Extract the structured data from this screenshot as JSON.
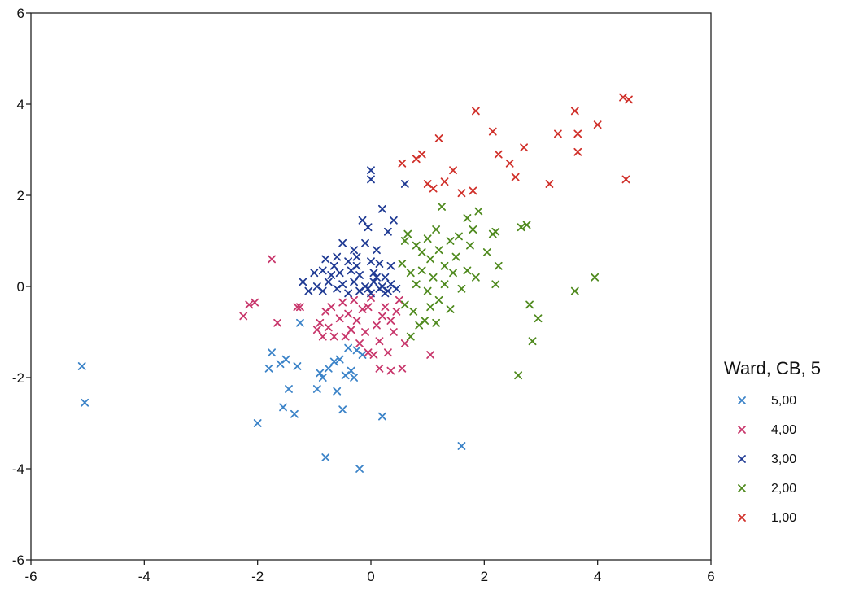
{
  "chart_data": {
    "type": "scatter",
    "title": "",
    "xlabel": "",
    "ylabel": "",
    "xlim": [
      -6,
      6
    ],
    "ylim": [
      -6,
      6
    ],
    "xticks": [
      -6,
      -4,
      -2,
      0,
      2,
      4,
      6
    ],
    "yticks": [
      -6,
      -4,
      -2,
      0,
      2,
      4,
      6
    ],
    "xtick_labels": [
      "-6",
      "-4",
      "-2",
      "0",
      "2",
      "4",
      "6"
    ],
    "ytick_labels": [
      "-6",
      "-4",
      "-2",
      "0",
      "2",
      "4",
      "6"
    ],
    "grid": false,
    "marker": "x",
    "legend": {
      "title": "Ward, CB, 5",
      "position": "right"
    },
    "series": [
      {
        "name": "5,00",
        "color": "#3b83c8",
        "points": [
          [
            -5.1,
            -1.75
          ],
          [
            -5.05,
            -2.55
          ],
          [
            -2.0,
            -3.0
          ],
          [
            -1.8,
            -1.8
          ],
          [
            -1.75,
            -1.45
          ],
          [
            -1.6,
            -1.7
          ],
          [
            -1.55,
            -2.65
          ],
          [
            -1.5,
            -1.6
          ],
          [
            -1.45,
            -2.25
          ],
          [
            -1.35,
            -2.8
          ],
          [
            -1.3,
            -1.75
          ],
          [
            -1.25,
            -0.8
          ],
          [
            -0.95,
            -2.25
          ],
          [
            -0.9,
            -1.9
          ],
          [
            -0.85,
            -2.0
          ],
          [
            -0.8,
            -3.75
          ],
          [
            -0.75,
            -1.8
          ],
          [
            -0.65,
            -1.65
          ],
          [
            -0.6,
            -2.3
          ],
          [
            -0.55,
            -1.6
          ],
          [
            -0.5,
            -2.7
          ],
          [
            -0.45,
            -1.95
          ],
          [
            -0.4,
            -1.35
          ],
          [
            -0.35,
            -1.85
          ],
          [
            -0.3,
            -2.0
          ],
          [
            -0.25,
            -1.4
          ],
          [
            -0.15,
            -1.5
          ],
          [
            0.2,
            -2.85
          ],
          [
            1.6,
            -3.5
          ],
          [
            -0.2,
            -4.0
          ]
        ]
      },
      {
        "name": "4,00",
        "color": "#c8366b",
        "points": [
          [
            -2.25,
            -0.65
          ],
          [
            -2.15,
            -0.4
          ],
          [
            -2.05,
            -0.35
          ],
          [
            -1.75,
            0.6
          ],
          [
            -1.65,
            -0.8
          ],
          [
            -1.3,
            -0.45
          ],
          [
            -1.25,
            -0.45
          ],
          [
            -0.95,
            -0.95
          ],
          [
            -0.9,
            -0.8
          ],
          [
            -0.85,
            -1.1
          ],
          [
            -0.8,
            -0.55
          ],
          [
            -0.75,
            -0.9
          ],
          [
            -0.7,
            -0.45
          ],
          [
            -0.65,
            -1.1
          ],
          [
            -0.55,
            -0.7
          ],
          [
            -0.5,
            -0.35
          ],
          [
            -0.45,
            -1.1
          ],
          [
            -0.4,
            -0.6
          ],
          [
            -0.35,
            -0.95
          ],
          [
            -0.3,
            -0.3
          ],
          [
            -0.25,
            -0.75
          ],
          [
            -0.2,
            -1.25
          ],
          [
            -0.15,
            -0.5
          ],
          [
            -0.1,
            -1.0
          ],
          [
            -0.05,
            -0.45
          ],
          [
            0.0,
            -0.25
          ],
          [
            0.05,
            -1.5
          ],
          [
            0.1,
            -0.85
          ],
          [
            0.15,
            -1.2
          ],
          [
            0.2,
            -0.65
          ],
          [
            0.25,
            -0.45
          ],
          [
            0.3,
            -1.45
          ],
          [
            0.35,
            -0.75
          ],
          [
            0.4,
            -1.0
          ],
          [
            0.45,
            -0.55
          ],
          [
            0.5,
            -0.3
          ],
          [
            -0.05,
            -1.45
          ],
          [
            0.15,
            -1.8
          ],
          [
            0.35,
            -1.85
          ],
          [
            0.55,
            -1.8
          ],
          [
            0.6,
            -1.25
          ],
          [
            1.05,
            -1.5
          ]
        ]
      },
      {
        "name": "3,00",
        "color": "#1f3a93",
        "points": [
          [
            0.0,
            2.55
          ],
          [
            0.0,
            2.35
          ],
          [
            0.6,
            2.25
          ],
          [
            0.2,
            1.7
          ],
          [
            0.4,
            1.45
          ],
          [
            -0.15,
            1.45
          ],
          [
            -0.05,
            1.3
          ],
          [
            0.3,
            1.2
          ],
          [
            -0.5,
            0.95
          ],
          [
            -0.3,
            0.8
          ],
          [
            -0.1,
            0.95
          ],
          [
            0.1,
            0.8
          ],
          [
            -0.8,
            0.6
          ],
          [
            -0.6,
            0.65
          ],
          [
            -0.4,
            0.55
          ],
          [
            -0.25,
            0.65
          ],
          [
            0.0,
            0.55
          ],
          [
            0.15,
            0.5
          ],
          [
            0.35,
            0.45
          ],
          [
            -1.0,
            0.3
          ],
          [
            -0.85,
            0.35
          ],
          [
            -0.7,
            0.25
          ],
          [
            -0.55,
            0.3
          ],
          [
            -0.35,
            0.35
          ],
          [
            -0.2,
            0.25
          ],
          [
            0.05,
            0.3
          ],
          [
            0.25,
            0.2
          ],
          [
            -1.2,
            0.1
          ],
          [
            -0.95,
            0.0
          ],
          [
            -0.75,
            0.1
          ],
          [
            -0.5,
            0.05
          ],
          [
            -0.3,
            0.1
          ],
          [
            -0.1,
            0.0
          ],
          [
            0.05,
            0.1
          ],
          [
            0.2,
            0.0
          ],
          [
            0.35,
            0.05
          ],
          [
            -1.1,
            -0.1
          ],
          [
            -0.85,
            -0.1
          ],
          [
            -0.6,
            -0.05
          ],
          [
            -0.4,
            -0.15
          ],
          [
            -0.2,
            -0.1
          ],
          [
            0.0,
            -0.15
          ],
          [
            0.15,
            -0.05
          ],
          [
            0.3,
            -0.1
          ],
          [
            0.45,
            -0.05
          ],
          [
            -0.25,
            0.45
          ],
          [
            0.1,
            0.2
          ],
          [
            -0.05,
            -0.05
          ],
          [
            0.25,
            -0.15
          ],
          [
            -0.65,
            0.45
          ]
        ]
      },
      {
        "name": "2,00",
        "color": "#4f8a1e",
        "points": [
          [
            0.6,
            1.0
          ],
          [
            0.65,
            1.15
          ],
          [
            0.8,
            0.9
          ],
          [
            0.9,
            0.75
          ],
          [
            1.0,
            1.05
          ],
          [
            1.05,
            0.6
          ],
          [
            1.15,
            1.25
          ],
          [
            1.2,
            0.8
          ],
          [
            1.25,
            1.75
          ],
          [
            1.3,
            0.45
          ],
          [
            1.4,
            1.0
          ],
          [
            1.5,
            0.65
          ],
          [
            1.55,
            1.1
          ],
          [
            1.7,
            1.5
          ],
          [
            1.75,
            0.9
          ],
          [
            1.8,
            1.25
          ],
          [
            1.9,
            1.65
          ],
          [
            2.05,
            0.75
          ],
          [
            2.15,
            1.15
          ],
          [
            2.2,
            1.2
          ],
          [
            2.25,
            0.45
          ],
          [
            2.65,
            1.3
          ],
          [
            2.75,
            1.35
          ],
          [
            0.55,
            0.5
          ],
          [
            0.7,
            0.3
          ],
          [
            0.8,
            0.05
          ],
          [
            0.9,
            0.35
          ],
          [
            1.0,
            -0.1
          ],
          [
            1.1,
            0.2
          ],
          [
            1.2,
            -0.3
          ],
          [
            1.3,
            0.05
          ],
          [
            1.45,
            0.3
          ],
          [
            1.6,
            -0.05
          ],
          [
            1.7,
            0.35
          ],
          [
            1.85,
            0.2
          ],
          [
            0.6,
            -0.4
          ],
          [
            0.75,
            -0.55
          ],
          [
            0.85,
            -0.85
          ],
          [
            0.95,
            -0.75
          ],
          [
            1.05,
            -0.45
          ],
          [
            1.15,
            -0.8
          ],
          [
            1.4,
            -0.5
          ],
          [
            0.7,
            -1.1
          ],
          [
            2.2,
            0.05
          ],
          [
            2.8,
            -0.4
          ],
          [
            2.95,
            -0.7
          ],
          [
            2.85,
            -1.2
          ],
          [
            2.6,
            -1.95
          ],
          [
            3.6,
            -0.1
          ],
          [
            3.95,
            0.2
          ]
        ]
      },
      {
        "name": "1,00",
        "color": "#d0302a",
        "points": [
          [
            0.55,
            2.7
          ],
          [
            0.8,
            2.8
          ],
          [
            0.9,
            2.9
          ],
          [
            1.0,
            2.25
          ],
          [
            1.1,
            2.15
          ],
          [
            1.2,
            3.25
          ],
          [
            1.3,
            2.3
          ],
          [
            1.45,
            2.55
          ],
          [
            1.6,
            2.05
          ],
          [
            1.8,
            2.1
          ],
          [
            1.85,
            3.85
          ],
          [
            2.15,
            3.4
          ],
          [
            2.25,
            2.9
          ],
          [
            2.45,
            2.7
          ],
          [
            2.55,
            2.4
          ],
          [
            2.7,
            3.05
          ],
          [
            3.15,
            2.25
          ],
          [
            3.3,
            3.35
          ],
          [
            3.6,
            3.85
          ],
          [
            3.65,
            3.35
          ],
          [
            3.65,
            2.95
          ],
          [
            4.0,
            3.55
          ],
          [
            4.45,
            4.15
          ],
          [
            4.55,
            4.1
          ],
          [
            4.5,
            2.35
          ]
        ]
      }
    ]
  }
}
